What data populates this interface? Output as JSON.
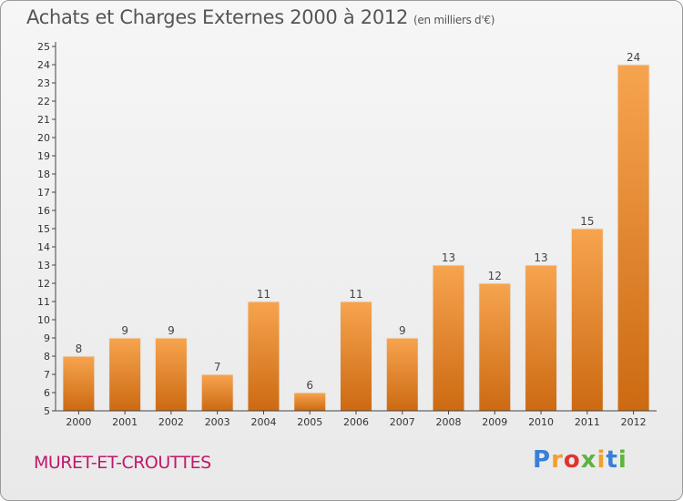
{
  "header": {
    "title": "Achats et Charges Externes 2000 à 2012",
    "unit": "(en milliers d'€)"
  },
  "footer": {
    "commune": "MURET-ET-CROUTTES",
    "logo_letters": [
      {
        "ch": "P",
        "color": "#3a7fd5"
      },
      {
        "ch": "r",
        "color": "#f0a030"
      },
      {
        "ch": "o",
        "color": "#e0332f"
      },
      {
        "ch": "x",
        "color": "#5fb33e"
      },
      {
        "ch": "i",
        "color": "#f0a030"
      },
      {
        "ch": "t",
        "color": "#3a7fd5"
      },
      {
        "ch": "i",
        "color": "#5fb33e"
      }
    ]
  },
  "colors": {
    "bar_light": "#f7a44f",
    "bar_dark": "#cc6a12",
    "axis": "#444444",
    "commune": "#c0186a"
  },
  "chart_data": {
    "type": "bar",
    "title": "Achats et Charges Externes 2000 à 2012",
    "subtitle": "(en milliers d'€)",
    "categories": [
      "2000",
      "2001",
      "2002",
      "2003",
      "2004",
      "2005",
      "2006",
      "2007",
      "2008",
      "2009",
      "2010",
      "2011",
      "2012"
    ],
    "values": [
      8,
      9,
      9,
      7,
      11,
      6,
      11,
      9,
      13,
      12,
      13,
      15,
      24
    ],
    "ylim": [
      5,
      25
    ],
    "yticks": [
      5,
      6,
      7,
      8,
      9,
      10,
      11,
      12,
      13,
      14,
      15,
      16,
      17,
      18,
      19,
      20,
      21,
      22,
      23,
      24,
      25
    ],
    "data_labels": true,
    "grid": false,
    "legend": "none"
  }
}
